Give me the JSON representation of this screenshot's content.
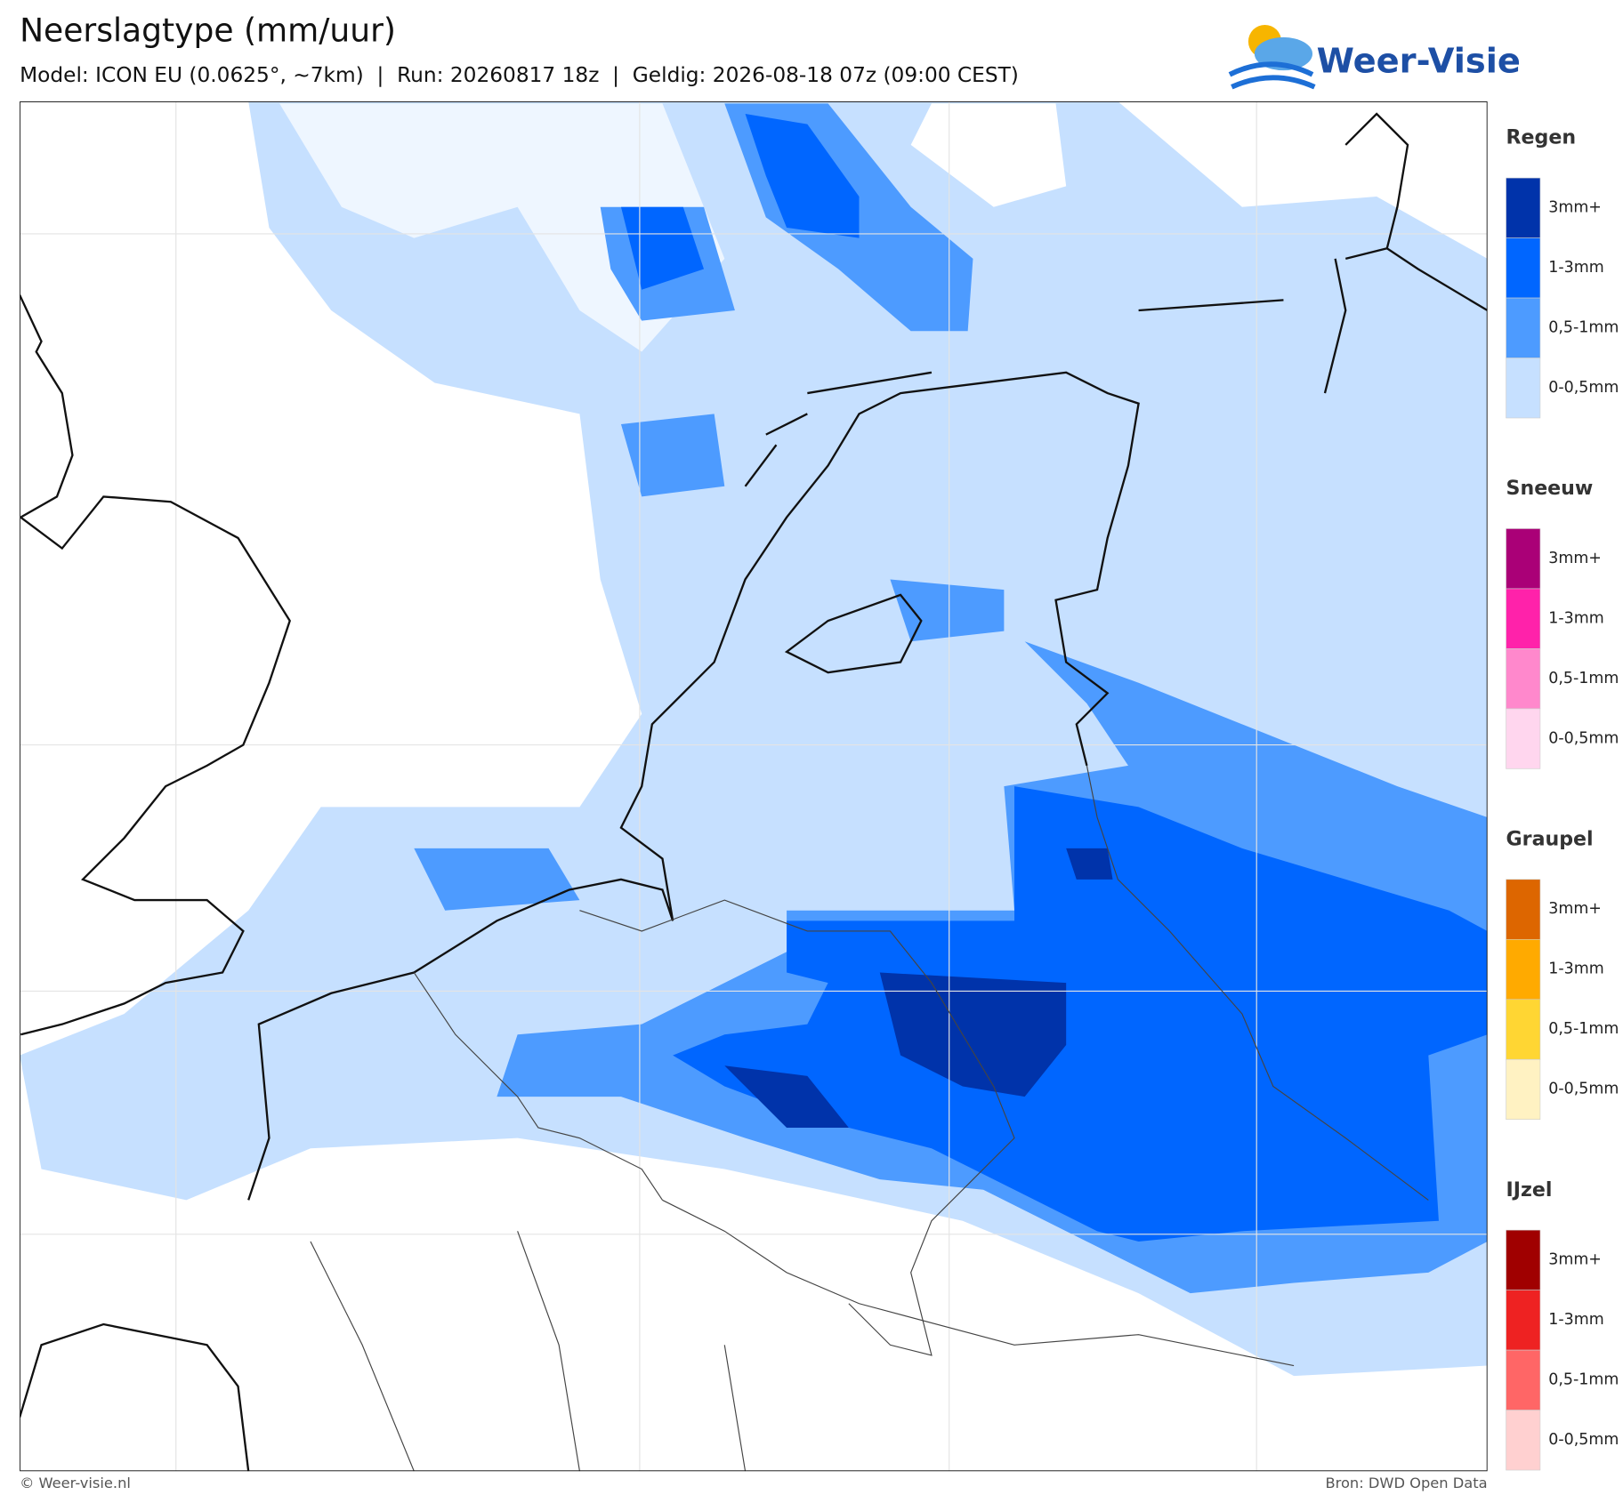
{
  "header": {
    "title": "Neerslagtype (mm/uur)",
    "subtitle": "Model: ICON EU (0.0625°, ~7km)  |  Run: 20260817 18z  |  Geldig: 2026-08-18 07z (09:00 CEST)",
    "logo": "Weer-Visie"
  },
  "legend": [
    {
      "title": "Regen",
      "items": [
        {
          "label": "3mm+",
          "color": "#0033aa"
        },
        {
          "label": "1-3mm",
          "color": "#0066ff"
        },
        {
          "label": "0,5-1mm",
          "color": "#4d9bff"
        },
        {
          "label": "0-0,5mm",
          "color": "#c6e0ff"
        }
      ]
    },
    {
      "title": "Sneeuw",
      "items": [
        {
          "label": "3mm+",
          "color": "#aa0077"
        },
        {
          "label": "1-3mm",
          "color": "#ff22aa"
        },
        {
          "label": "0,5-1mm",
          "color": "#ff88cc"
        },
        {
          "label": "0-0,5mm",
          "color": "#ffd6ee"
        }
      ]
    },
    {
      "title": "Graupel",
      "items": [
        {
          "label": "3mm+",
          "color": "#dd6600"
        },
        {
          "label": "1-3mm",
          "color": "#ffaa00"
        },
        {
          "label": "0,5-1mm",
          "color": "#ffd633"
        },
        {
          "label": "0-0,5mm",
          "color": "#fff2c2"
        }
      ]
    },
    {
      "title": "IJzel",
      "items": [
        {
          "label": "3mm+",
          "color": "#a00000"
        },
        {
          "label": "1-3mm",
          "color": "#ee2222"
        },
        {
          "label": "0,5-1mm",
          "color": "#ff6666"
        },
        {
          "label": "0-0,5mm",
          "color": "#ffd0d0"
        }
      ]
    }
  ],
  "footer": {
    "left": "© Weer-visie.nl",
    "right": "Bron: DWD Open Data"
  }
}
